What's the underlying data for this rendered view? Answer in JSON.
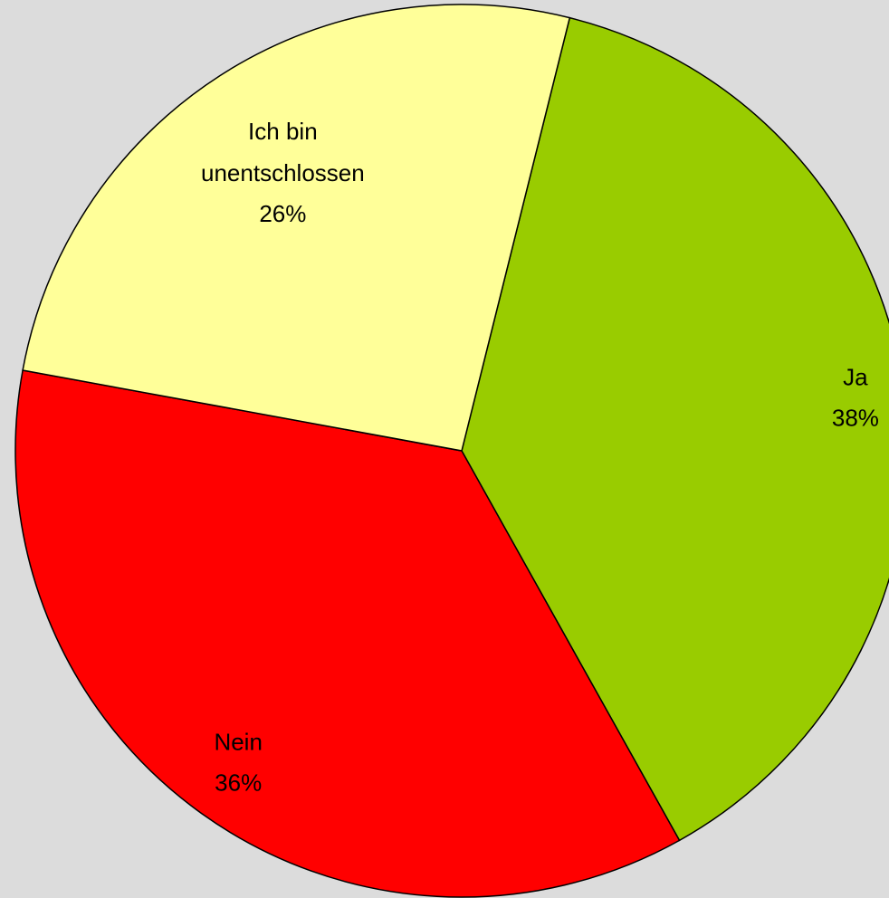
{
  "chart_data": {
    "type": "pie",
    "categories": [
      "Ja",
      "Nein",
      "Ich bin unentschlossen"
    ],
    "values": [
      38,
      36,
      26
    ],
    "value_labels": [
      "38%",
      "36%",
      "26%"
    ],
    "colors": [
      "#99cc00",
      "#ff0000",
      "#ffff99"
    ]
  }
}
